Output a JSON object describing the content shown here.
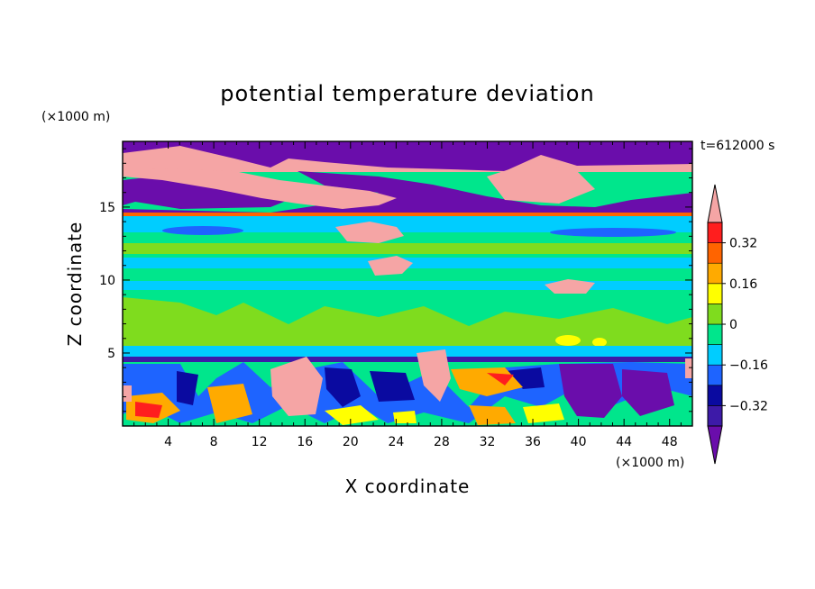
{
  "chart_data": {
    "type": "heatmap",
    "title": "potential temperature deviation",
    "xlabel": "X coordinate",
    "ylabel": "Z coordinate",
    "x_unit": "(×1000 m)",
    "y_unit": "(×1000 m)",
    "time_label": "t=612000 s",
    "xlim": [
      0,
      50
    ],
    "ylim": [
      0,
      19.5
    ],
    "x_ticks": [
      4,
      8,
      12,
      16,
      20,
      24,
      28,
      32,
      36,
      40,
      44,
      48
    ],
    "y_ticks": [
      5,
      10,
      15
    ],
    "colorbar": {
      "levels": [
        -0.4,
        -0.32,
        -0.24,
        -0.16,
        -0.08,
        0,
        0.08,
        0.16,
        0.24,
        0.32,
        0.4
      ],
      "tick_labels": [
        "0.32",
        "0.16",
        "0",
        "−0.16",
        "−0.32"
      ],
      "tick_values": [
        0.32,
        0.16,
        0,
        -0.16,
        -0.32
      ],
      "colors": [
        "#6a0dab",
        "#3d1aa8",
        "#0a0aa0",
        "#1e64ff",
        "#00cdff",
        "#00e68c",
        "#7fdc1e",
        "#ffff00",
        "#ffaa00",
        "#ff6400",
        "#ff1e1e",
        "#f5a5a5"
      ],
      "extend": "both"
    },
    "layers": [
      {
        "z": [
          17.8,
          19.5
        ],
        "description": "mixed pink and purple"
      },
      {
        "z": [
          15.0,
          17.8
        ],
        "description": "purple and pink bands"
      },
      {
        "z": [
          14.0,
          15.0
        ],
        "value": -0.16
      },
      {
        "z": [
          10.0,
          14.0
        ],
        "value": -0.04
      },
      {
        "z": [
          5.0,
          10.0
        ],
        "value": 0.04
      },
      {
        "z": [
          4.6,
          5.0
        ],
        "value": -0.36
      },
      {
        "z": [
          0,
          4.6
        ],
        "description": "turbulent mixed values"
      }
    ]
  }
}
